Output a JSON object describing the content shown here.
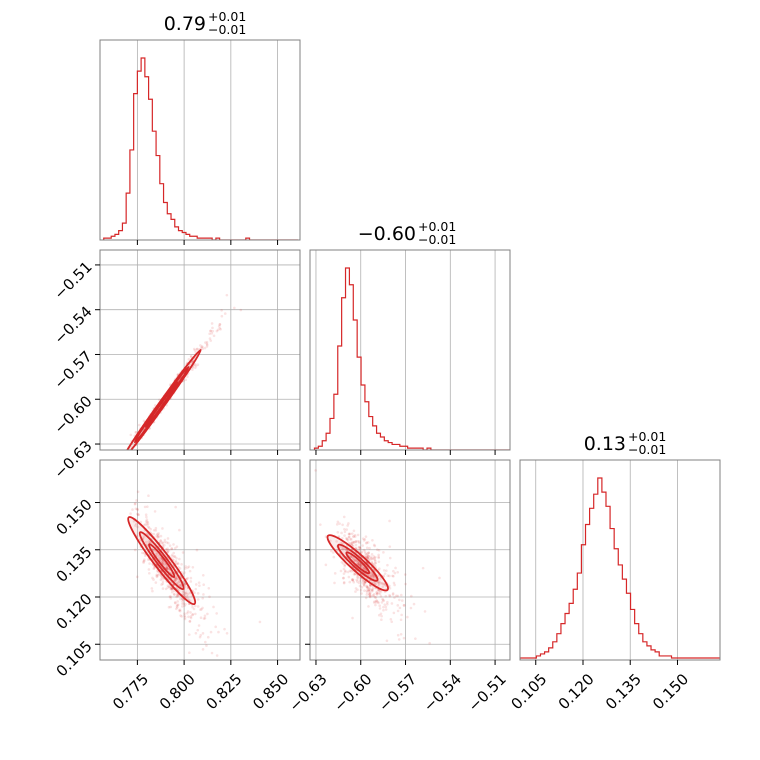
{
  "chart_data": {
    "type": "corner",
    "color": "#d62728",
    "grid": true,
    "parameters": [
      {
        "title": {
          "median": "0.79",
          "plus": "+0.01",
          "minus": "−0.01"
        },
        "range": [
          0.755,
          0.862
        ],
        "ticks": [
          0.775,
          0.8,
          0.825,
          0.85
        ],
        "tick_labels": [
          "0.775",
          "0.800",
          "0.825",
          "0.850"
        ]
      },
      {
        "title": {
          "median": "−0.60",
          "plus": "+0.01",
          "minus": "−0.01"
        },
        "range": [
          -0.634,
          -0.5
        ],
        "ticks": [
          -0.63,
          -0.6,
          -0.57,
          -0.54,
          -0.51
        ],
        "tick_labels": [
          "−0.63",
          "−0.60",
          "−0.57",
          "−0.54",
          "−0.51"
        ]
      },
      {
        "title": {
          "median": "0.13",
          "plus": "+0.01",
          "minus": "−0.01"
        },
        "range": [
          0.1,
          0.1635
        ],
        "ticks": [
          0.105,
          0.12,
          0.135,
          0.15
        ],
        "tick_labels": [
          "0.105",
          "0.120",
          "0.135",
          "0.150"
        ]
      }
    ],
    "histograms": [
      {
        "param": 0,
        "bin_start": 0.757,
        "bin_width": 0.002,
        "counts": [
          1,
          1,
          2,
          3,
          5,
          9,
          25,
          48,
          78,
          90,
          97,
          87,
          75,
          58,
          45,
          30,
          20,
          14,
          11,
          7,
          5,
          4,
          3,
          2,
          2,
          1,
          1,
          1,
          1,
          0,
          1,
          0,
          0,
          0,
          0,
          0,
          0,
          0,
          1,
          0,
          0,
          0,
          0,
          0,
          0,
          0,
          0,
          0,
          0,
          0,
          0,
          0
        ]
      },
      {
        "param": 1,
        "bin_start": -0.631,
        "bin_width": 0.0026,
        "counts": [
          1,
          2,
          5,
          9,
          17,
          30,
          56,
          82,
          98,
          89,
          70,
          50,
          35,
          26,
          18,
          13,
          9,
          7,
          5,
          4,
          3,
          3,
          2,
          2,
          1,
          1,
          1,
          1,
          0,
          1,
          0,
          0,
          0,
          0,
          0,
          0,
          0,
          0,
          0,
          0,
          0,
          0,
          0,
          0,
          0,
          0,
          0,
          0,
          0,
          0,
          0,
          0
        ]
      },
      {
        "param": 2,
        "bin_start": 0.1,
        "bin_width": 0.0013,
        "counts": [
          1,
          1,
          1,
          1,
          2,
          3,
          4,
          6,
          9,
          13,
          18,
          23,
          28,
          35,
          43,
          57,
          67,
          75,
          82,
          90,
          83,
          76,
          65,
          55,
          47,
          40,
          33,
          25,
          18,
          13,
          9,
          7,
          5,
          4,
          2,
          2,
          2,
          1,
          1,
          1,
          1,
          1,
          1,
          1,
          1,
          1,
          1,
          1,
          1
        ]
      }
    ],
    "scatter_panels": [
      {
        "x_param": 0,
        "y_param": 1,
        "relation": "y = -0.60 + 1.75 * (x - 0.79)"
      },
      {
        "x_param": 0,
        "y_param": 2,
        "relation": "y = 0.13 - 0.78 * (x - 0.79)"
      },
      {
        "x_param": 1,
        "y_param": 2,
        "relation": "y = 0.13 - 0.43 * (x + 0.60)"
      }
    ]
  }
}
